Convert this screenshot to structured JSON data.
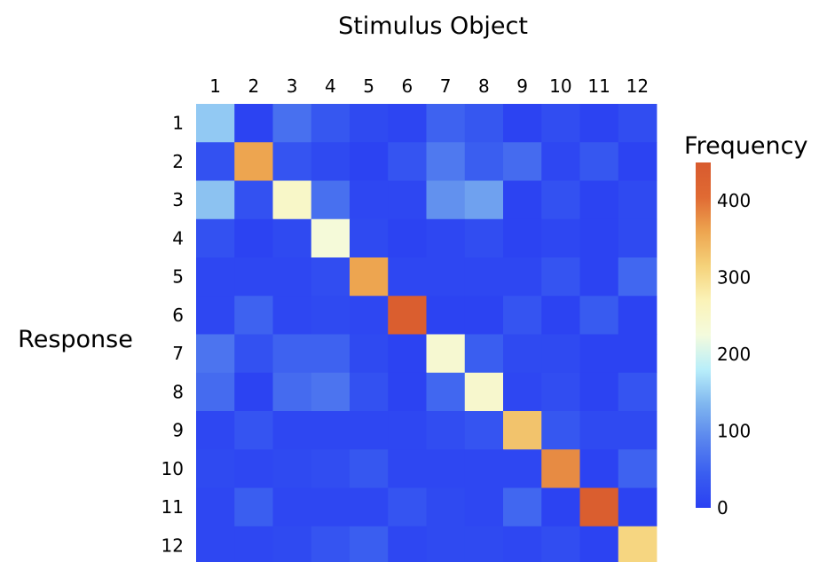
{
  "chart_data": {
    "type": "heatmap",
    "title": "Stimulus Object",
    "xlabel": "Stimulus Object",
    "ylabel": "Response",
    "x_categories": [
      "1",
      "2",
      "3",
      "4",
      "5",
      "6",
      "7",
      "8",
      "9",
      "10",
      "11",
      "12"
    ],
    "y_categories": [
      "1",
      "2",
      "3",
      "4",
      "5",
      "6",
      "7",
      "8",
      "9",
      "10",
      "11",
      "12"
    ],
    "values": [
      [
        150,
        5,
        65,
        35,
        15,
        8,
        50,
        35,
        5,
        20,
        5,
        20
      ],
      [
        25,
        360,
        30,
        15,
        5,
        30,
        75,
        45,
        60,
        10,
        35,
        5
      ],
      [
        145,
        25,
        250,
        65,
        10,
        10,
        100,
        115,
        5,
        25,
        5,
        15
      ],
      [
        25,
        5,
        15,
        230,
        15,
        5,
        10,
        20,
        5,
        10,
        5,
        15
      ],
      [
        10,
        10,
        10,
        20,
        360,
        10,
        10,
        10,
        10,
        30,
        5,
        55
      ],
      [
        10,
        50,
        10,
        15,
        10,
        440,
        5,
        5,
        30,
        5,
        40,
        5
      ],
      [
        70,
        25,
        50,
        50,
        15,
        5,
        240,
        45,
        15,
        15,
        5,
        5
      ],
      [
        60,
        5,
        60,
        70,
        25,
        5,
        55,
        245,
        10,
        20,
        5,
        30
      ],
      [
        10,
        30,
        10,
        10,
        10,
        10,
        20,
        30,
        330,
        35,
        15,
        15
      ],
      [
        15,
        10,
        15,
        20,
        35,
        10,
        10,
        10,
        10,
        380,
        5,
        50
      ],
      [
        10,
        45,
        10,
        10,
        10,
        30,
        15,
        10,
        55,
        5,
        440,
        5
      ],
      [
        10,
        10,
        15,
        30,
        45,
        10,
        15,
        15,
        10,
        20,
        5,
        310
      ]
    ],
    "colorbar": {
      "label": "Frequency",
      "range": [
        0,
        450
      ],
      "ticks": [
        0,
        100,
        200,
        300,
        400
      ],
      "colors": [
        "#2a40f2",
        "#3a5ef0",
        "#5a86ee",
        "#7fb6ef",
        "#b8eefa",
        "#f4fbdd",
        "#fbf3b8",
        "#f5d27a",
        "#eda550",
        "#e06a33",
        "#d85a2e"
      ]
    }
  }
}
